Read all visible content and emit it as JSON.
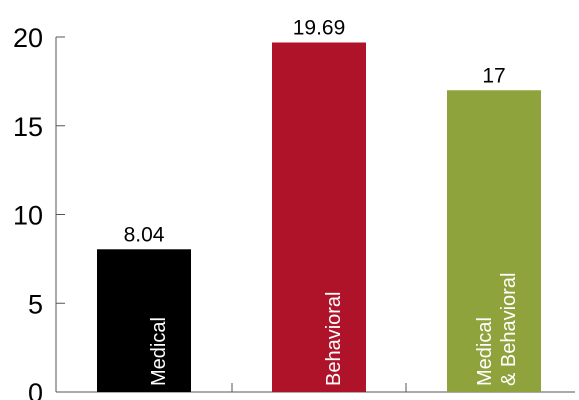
{
  "chart_data": {
    "type": "bar",
    "categories": [
      "Medical",
      "Behavioral",
      "Medical & Behavioral"
    ],
    "category_label_lines": [
      [
        "Medical"
      ],
      [
        "Behavioral"
      ],
      [
        "Medical",
        "& Behavioral"
      ]
    ],
    "values": [
      8.04,
      19.69,
      17
    ],
    "value_labels": [
      "8.04",
      "19.69",
      "17"
    ],
    "colors": [
      "#000000",
      "#ae132a",
      "#8fa33d"
    ],
    "ylim": [
      0,
      20
    ],
    "yticks": [
      0,
      5,
      10,
      15,
      20
    ],
    "ytick_labels": [
      "0",
      "5",
      "10",
      "15",
      "20"
    ],
    "title": "",
    "xlabel": "",
    "ylabel": "",
    "grid": false,
    "legend": false
  }
}
